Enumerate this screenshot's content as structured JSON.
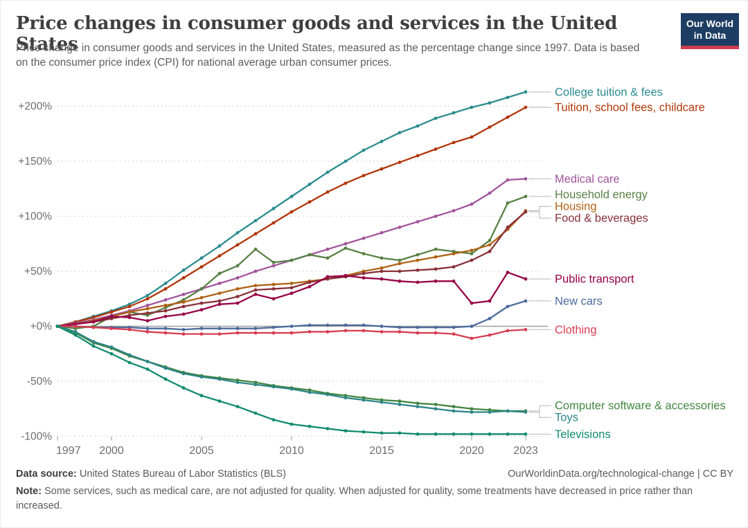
{
  "header": {
    "title": "Price changes in consumer goods and services in the United States",
    "subtitle": "Price change in consumer goods and services in the United States, measured as the percentage change since 1997. Data is based on the consumer price index (CPI) for national average urban consumer prices.",
    "logo": {
      "line1": "Our World",
      "line2": "in Data",
      "bg_color": "#1d3d63",
      "accent_color": "#cf3b4f"
    }
  },
  "chart_data": {
    "type": "line",
    "title": "Price changes in consumer goods and services in the United States",
    "unit": "% change since 1997",
    "xlabel": "",
    "ylabel": "",
    "grid": true,
    "legend_position": "right-of-line-ends",
    "ylim": [
      -100,
      215
    ],
    "x": [
      1997,
      1998,
      1999,
      2000,
      2001,
      2002,
      2003,
      2004,
      2005,
      2006,
      2007,
      2008,
      2009,
      2010,
      2011,
      2012,
      2013,
      2014,
      2015,
      2016,
      2017,
      2018,
      2019,
      2020,
      2021,
      2022,
      2023
    ],
    "x_ticks": [
      1997,
      2000,
      2005,
      2010,
      2015,
      2020,
      2023
    ],
    "y_ticks": [
      {
        "value": 200,
        "label": "+200%"
      },
      {
        "value": 150,
        "label": "+150%"
      },
      {
        "value": 100,
        "label": "+100%"
      },
      {
        "value": 50,
        "label": "+50%"
      },
      {
        "value": 0,
        "label": "+0%"
      },
      {
        "value": -50,
        "label": "-50%"
      },
      {
        "value": -100,
        "label": "-100%"
      }
    ],
    "series": [
      {
        "name": "College tuition & fees",
        "color": "#2b8b8f",
        "values": [
          0,
          4,
          9,
          14,
          20,
          28,
          39,
          51,
          62,
          73,
          85,
          96,
          107,
          118,
          129,
          140,
          150,
          160,
          168,
          176,
          182,
          189,
          194,
          199,
          203,
          208,
          213
        ]
      },
      {
        "name": "Tuition, school fees, childcare",
        "color": "#b13507",
        "values": [
          0,
          4,
          8,
          13,
          18,
          25,
          34,
          44,
          54,
          64,
          74,
          84,
          94,
          104,
          113,
          122,
          130,
          137,
          143,
          149,
          155,
          161,
          167,
          172,
          181,
          190,
          199
        ]
      },
      {
        "name": "Medical care",
        "color": "#a2559c",
        "values": [
          0,
          3,
          6,
          10,
          14,
          19,
          24,
          29,
          34,
          39,
          44,
          50,
          55,
          60,
          65,
          70,
          75,
          80,
          85,
          90,
          95,
          100,
          105,
          111,
          121,
          133,
          134
        ]
      },
      {
        "name": "Household energy",
        "color": "#578145",
        "values": [
          0,
          -2,
          0,
          9,
          13,
          10,
          17,
          24,
          34,
          48,
          55,
          70,
          58,
          60,
          65,
          62,
          71,
          66,
          62,
          60,
          65,
          70,
          68,
          66,
          78,
          112,
          118
        ]
      },
      {
        "name": "Housing",
        "color": "#b16214",
        "values": [
          0,
          2,
          5,
          9,
          13,
          16,
          19,
          22,
          26,
          30,
          34,
          37,
          38,
          39,
          41,
          43,
          46,
          50,
          53,
          57,
          60,
          63,
          66,
          69,
          74,
          88,
          105
        ]
      },
      {
        "name": "Food & beverages",
        "color": "#883039",
        "values": [
          0,
          2,
          4,
          7,
          10,
          12,
          14,
          18,
          21,
          23,
          27,
          33,
          34,
          35,
          40,
          43,
          45,
          48,
          50,
          50,
          51,
          52,
          54,
          60,
          68,
          90,
          104
        ]
      },
      {
        "name": "Public transport",
        "color": "#970046",
        "values": [
          0,
          2,
          4,
          9,
          8,
          5,
          9,
          11,
          15,
          20,
          21,
          29,
          25,
          30,
          36,
          45,
          46,
          44,
          43,
          41,
          40,
          41,
          41,
          21,
          23,
          49,
          43
        ]
      },
      {
        "name": "New cars",
        "color": "#4c6a9c",
        "values": [
          0,
          0,
          -1,
          -1,
          -1,
          -2,
          -2,
          -3,
          -2,
          -2,
          -2,
          -2,
          -1,
          0,
          1,
          1,
          1,
          1,
          0,
          -1,
          -1,
          -1,
          -1,
          0,
          7,
          18,
          23
        ]
      },
      {
        "name": "Clothing",
        "color": "#d73c50",
        "values": [
          0,
          0,
          -1,
          -2,
          -3,
          -5,
          -6,
          -7,
          -7,
          -7,
          -6,
          -6,
          -6,
          -6,
          -5,
          -5,
          -4,
          -4,
          -5,
          -5,
          -6,
          -6,
          -7,
          -11,
          -8,
          -4,
          -3
        ]
      },
      {
        "name": "Computer software & accessories",
        "color": "#418541",
        "values": [
          0,
          -6,
          -15,
          -20,
          -27,
          -32,
          -37,
          -42,
          -45,
          -47,
          -49,
          -51,
          -54,
          -56,
          -58,
          -61,
          -63,
          -65,
          -67,
          -68,
          -70,
          -71,
          -73,
          -75,
          -76,
          -77,
          -77
        ]
      },
      {
        "name": "Toys",
        "color": "#2d8587",
        "values": [
          0,
          -5,
          -14,
          -19,
          -26,
          -32,
          -38,
          -43,
          -46,
          -48,
          -51,
          -53,
          -55,
          -57,
          -60,
          -62,
          -65,
          -67,
          -69,
          -71,
          -73,
          -75,
          -77,
          -78,
          -78,
          -77,
          -78
        ]
      },
      {
        "name": "Televisions",
        "color": "#108b6e",
        "values": [
          0,
          -8,
          -18,
          -25,
          -33,
          -39,
          -48,
          -56,
          -63,
          -68,
          -73,
          -79,
          -85,
          -89,
          -91,
          -93,
          -95,
          -96,
          -97,
          -97,
          -98,
          -98,
          -98,
          -98,
          -98,
          -98,
          -98
        ]
      }
    ]
  },
  "footer": {
    "source_label": "Data source:",
    "source_text": " United States Bureau of Labor Statistics (BLS)",
    "link_text": "OurWorldinData.org/technological-change | CC BY",
    "note_label": "Note:",
    "note_text": " Some services, such as medical care, are not adjusted for quality. When adjusted for quality, some treatments have decreased in price rather than increased."
  }
}
